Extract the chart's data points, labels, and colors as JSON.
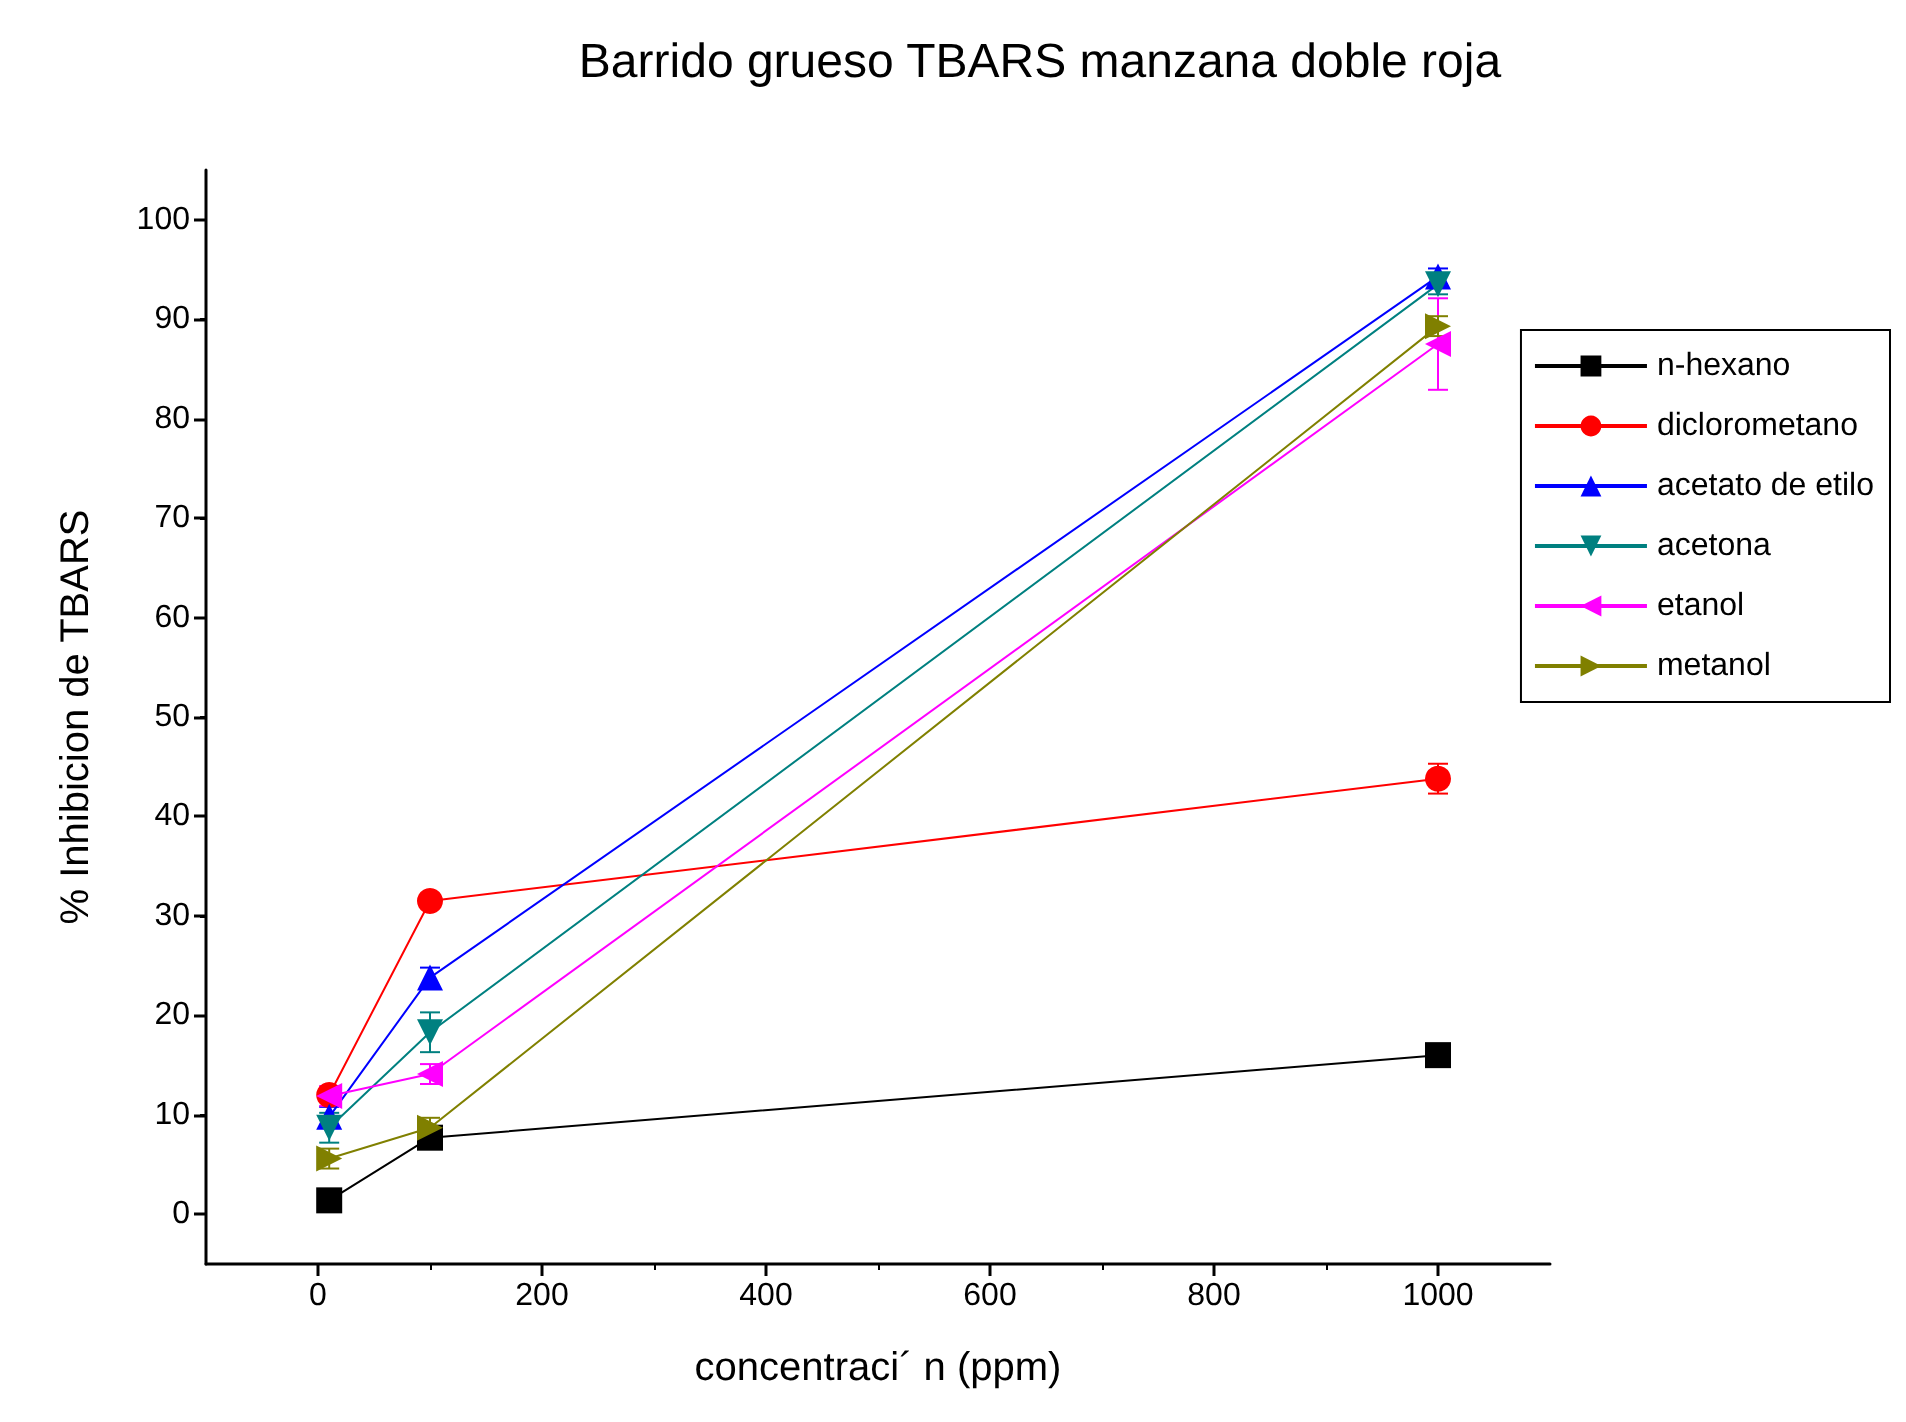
{
  "chart_data": {
    "type": "line",
    "title": "Barrido grueso TBARS manzana doble roja",
    "xlabel": "concentraci´ n (ppm)",
    "ylabel": "% Inhibicion de TBARS",
    "x": [
      10,
      100,
      1000
    ],
    "series": [
      {
        "name": "n-hexano",
        "color": "#000000",
        "marker": "square",
        "values": [
          1.4,
          7.7,
          16.0
        ],
        "errors": [
          null,
          null,
          1.0
        ]
      },
      {
        "name": "diclorometano",
        "color": "#ff0000",
        "marker": "circle",
        "values": [
          12.0,
          31.5,
          43.8
        ],
        "errors": [
          null,
          null,
          1.5
        ]
      },
      {
        "name": "acetato de etilo",
        "color": "#0000ff",
        "marker": "triangle",
        "values": [
          9.8,
          23.8,
          94.3
        ],
        "errors": [
          1.0,
          1.0,
          0.8
        ]
      },
      {
        "name": "acetona",
        "color": "#008080",
        "marker": "triangle-down",
        "values": [
          8.7,
          18.3,
          93.5
        ],
        "errors": [
          1.5,
          2.0,
          1.0
        ]
      },
      {
        "name": "etanol",
        "color": "#ff00ff",
        "marker": "triangle-left",
        "values": [
          11.9,
          14.1,
          87.5
        ],
        "errors": [
          1.0,
          1.0,
          4.6
        ]
      },
      {
        "name": "metanol",
        "color": "#808000",
        "marker": "triangle-right",
        "values": [
          5.6,
          8.7,
          89.3
        ],
        "errors": [
          1.0,
          1.0,
          1.0
        ]
      }
    ],
    "xlim": [
      -100,
      1100
    ],
    "xticks": [
      0,
      200,
      400,
      600,
      800,
      1000
    ],
    "ylim": [
      -5,
      105
    ],
    "yticks": [
      0,
      10,
      20,
      30,
      40,
      50,
      60,
      70,
      80,
      90,
      100
    ],
    "grid": false,
    "legend": "right",
    "line_style": "solid"
  }
}
